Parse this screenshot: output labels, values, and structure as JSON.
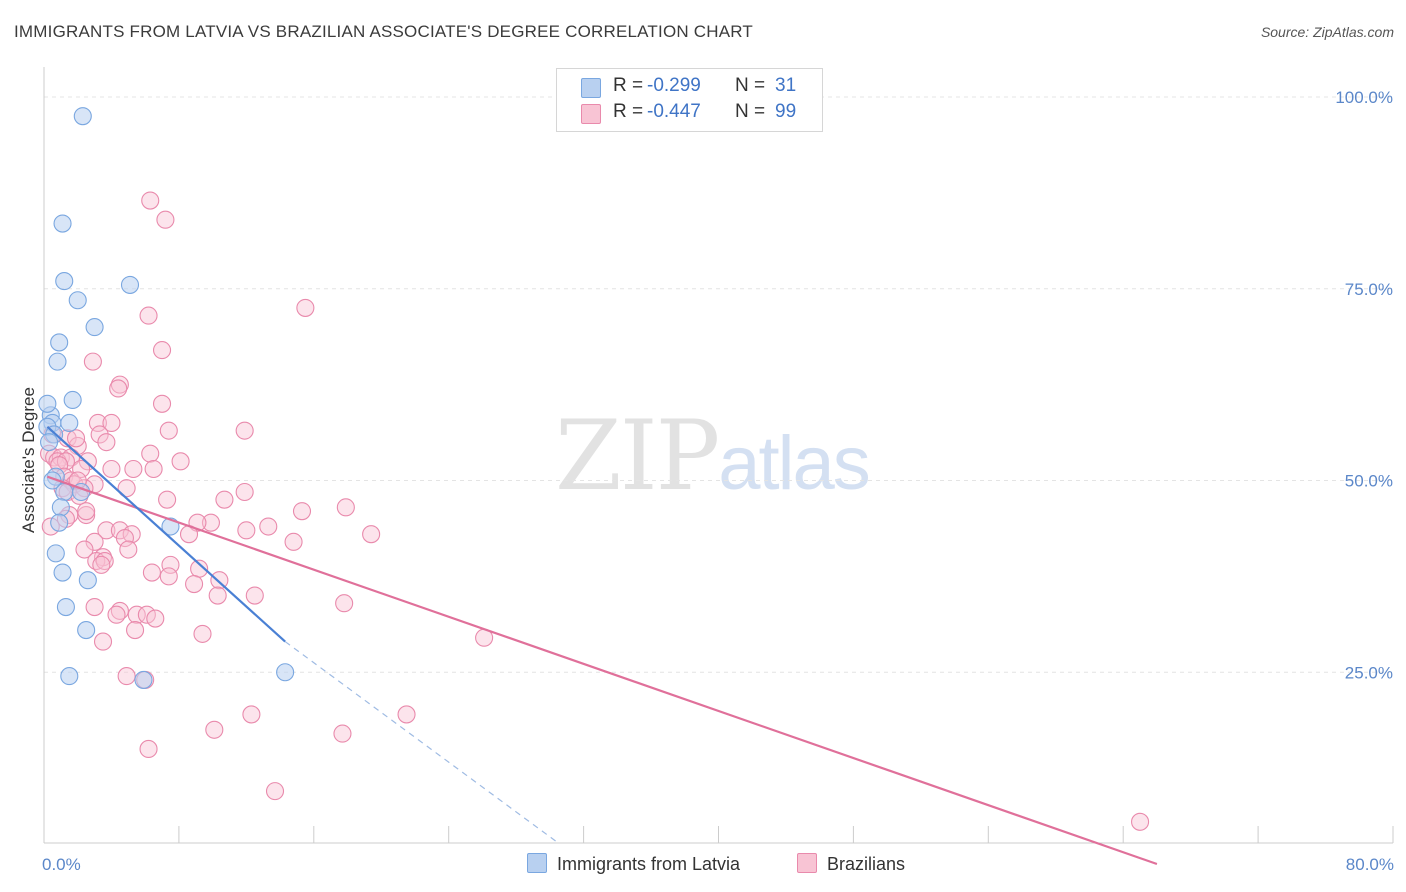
{
  "title": "IMMIGRANTS FROM LATVIA VS BRAZILIAN ASSOCIATE'S DEGREE CORRELATION CHART",
  "source": "Source: ZipAtlas.com",
  "watermark": {
    "zip": "ZIP",
    "atlas": "atlas"
  },
  "colors": {
    "blue": "#4a80d4",
    "blue_fill": "#b8d0f0",
    "blue_stroke": "#7aa7e0",
    "pink": "#e0709a",
    "pink_fill": "#f8c4d4",
    "pink_stroke": "#e98aac",
    "tick": "#5b87c9",
    "grid": "#e4e4e4"
  },
  "legend": {
    "rows": [
      {
        "r_label": "R =",
        "r_value": "-0.299",
        "n_label": "N =",
        "n_value": "31"
      },
      {
        "r_label": "R =",
        "r_value": "-0.447",
        "n_label": "N =",
        "n_value": "99"
      }
    ]
  },
  "bottom_legend": {
    "series1": "Immigrants from Latvia",
    "series2": "Brazilians"
  },
  "chart_data": {
    "type": "scatter",
    "title": "IMMIGRANTS FROM LATVIA VS BRAZILIAN ASSOCIATE'S DEGREE CORRELATION CHART",
    "xlabel": "",
    "ylabel": "Associate's Degree",
    "xlim": [
      0,
      80
    ],
    "ylim": [
      0,
      102
    ],
    "x_tick_labels": [
      "0.0%",
      "80.0%"
    ],
    "y_ticks": [
      25,
      50,
      75,
      100
    ],
    "y_tick_labels": [
      "25.0%",
      "50.0%",
      "75.0%",
      "100.0%"
    ],
    "grid": true,
    "series": [
      {
        "name": "Immigrants from Latvia",
        "r": -0.299,
        "n": 31,
        "trend": {
          "x0": 0.2,
          "y0": 57.0,
          "x1": 14.3,
          "y1": 29.0,
          "dash_x1": 30.5,
          "dash_y1": -2.0
        },
        "points": [
          [
            2.3,
            97.5
          ],
          [
            1.1,
            83.5
          ],
          [
            1.2,
            76.0
          ],
          [
            5.1,
            75.5
          ],
          [
            2.0,
            73.5
          ],
          [
            3.0,
            70.0
          ],
          [
            0.9,
            68.0
          ],
          [
            0.8,
            65.5
          ],
          [
            1.7,
            60.5
          ],
          [
            0.4,
            58.5
          ],
          [
            0.5,
            57.5
          ],
          [
            1.5,
            57.5
          ],
          [
            0.2,
            57.0
          ],
          [
            0.6,
            56.0
          ],
          [
            0.3,
            55.0
          ],
          [
            0.7,
            50.5
          ],
          [
            0.5,
            50.0
          ],
          [
            1.2,
            48.5
          ],
          [
            2.2,
            48.5
          ],
          [
            1.0,
            46.5
          ],
          [
            0.9,
            44.5
          ],
          [
            7.5,
            44.0
          ],
          [
            0.7,
            40.5
          ],
          [
            1.1,
            38.0
          ],
          [
            2.6,
            37.0
          ],
          [
            1.3,
            33.5
          ],
          [
            2.5,
            30.5
          ],
          [
            1.5,
            24.5
          ],
          [
            5.9,
            24.0
          ],
          [
            14.3,
            25.0
          ],
          [
            0.2,
            60.0
          ]
        ]
      },
      {
        "name": "Brazilians",
        "r": -0.447,
        "n": 99,
        "trend": {
          "x0": 0.2,
          "y0": 50.5,
          "x1": 66.0,
          "y1": 0.0
        },
        "points": [
          [
            6.3,
            86.5
          ],
          [
            7.2,
            84.0
          ],
          [
            15.5,
            72.5
          ],
          [
            6.2,
            71.5
          ],
          [
            7.0,
            67.0
          ],
          [
            2.9,
            65.5
          ],
          [
            4.5,
            62.5
          ],
          [
            4.4,
            62.0
          ],
          [
            7.0,
            60.0
          ],
          [
            3.2,
            57.5
          ],
          [
            4.0,
            57.5
          ],
          [
            7.4,
            56.5
          ],
          [
            11.9,
            56.5
          ],
          [
            0.5,
            56.0
          ],
          [
            3.3,
            56.0
          ],
          [
            1.4,
            55.5
          ],
          [
            3.7,
            55.0
          ],
          [
            2.0,
            54.5
          ],
          [
            0.3,
            53.5
          ],
          [
            6.3,
            53.5
          ],
          [
            0.6,
            53.0
          ],
          [
            1.0,
            53.0
          ],
          [
            1.6,
            53.0
          ],
          [
            0.8,
            52.5
          ],
          [
            1.3,
            52.5
          ],
          [
            2.6,
            52.5
          ],
          [
            8.1,
            52.5
          ],
          [
            0.9,
            52.0
          ],
          [
            2.2,
            51.5
          ],
          [
            4.0,
            51.5
          ],
          [
            5.3,
            51.5
          ],
          [
            6.5,
            51.5
          ],
          [
            1.2,
            50.5
          ],
          [
            1.6,
            50.0
          ],
          [
            1.8,
            49.5
          ],
          [
            3.0,
            49.5
          ],
          [
            1.1,
            49.0
          ],
          [
            2.4,
            49.0
          ],
          [
            4.9,
            49.0
          ],
          [
            1.4,
            48.5
          ],
          [
            2.1,
            48.0
          ],
          [
            11.9,
            48.5
          ],
          [
            7.3,
            47.5
          ],
          [
            10.7,
            47.5
          ],
          [
            17.9,
            46.5
          ],
          [
            15.3,
            46.0
          ],
          [
            2.5,
            45.5
          ],
          [
            2.5,
            46.0
          ],
          [
            1.5,
            45.5
          ],
          [
            1.3,
            45.0
          ],
          [
            9.9,
            44.5
          ],
          [
            9.1,
            44.5
          ],
          [
            12.0,
            43.5
          ],
          [
            13.3,
            44.0
          ],
          [
            3.7,
            43.5
          ],
          [
            4.5,
            43.5
          ],
          [
            5.2,
            43.0
          ],
          [
            14.8,
            42.0
          ],
          [
            19.4,
            43.0
          ],
          [
            8.6,
            43.0
          ],
          [
            4.8,
            42.5
          ],
          [
            3.0,
            42.0
          ],
          [
            2.4,
            41.0
          ],
          [
            5.0,
            41.0
          ],
          [
            3.5,
            40.0
          ],
          [
            3.1,
            39.5
          ],
          [
            3.6,
            39.5
          ],
          [
            3.4,
            39.0
          ],
          [
            7.5,
            39.0
          ],
          [
            9.2,
            38.5
          ],
          [
            6.4,
            38.0
          ],
          [
            7.4,
            37.5
          ],
          [
            8.9,
            36.5
          ],
          [
            10.4,
            37.0
          ],
          [
            10.3,
            35.0
          ],
          [
            12.5,
            35.0
          ],
          [
            3.0,
            33.5
          ],
          [
            17.8,
            34.0
          ],
          [
            4.5,
            33.0
          ],
          [
            4.3,
            32.5
          ],
          [
            5.5,
            32.5
          ],
          [
            6.1,
            32.5
          ],
          [
            6.6,
            32.0
          ],
          [
            5.4,
            30.5
          ],
          [
            9.4,
            30.0
          ],
          [
            26.1,
            29.5
          ],
          [
            3.5,
            29.0
          ],
          [
            4.9,
            24.5
          ],
          [
            12.3,
            19.5
          ],
          [
            21.5,
            19.5
          ],
          [
            10.1,
            17.5
          ],
          [
            17.7,
            17.0
          ],
          [
            6.2,
            15.0
          ],
          [
            13.7,
            9.5
          ],
          [
            65.0,
            5.5
          ],
          [
            0.4,
            44.0
          ],
          [
            1.9,
            55.5
          ],
          [
            6.0,
            24.0
          ],
          [
            2.0,
            50.0
          ]
        ]
      }
    ]
  }
}
